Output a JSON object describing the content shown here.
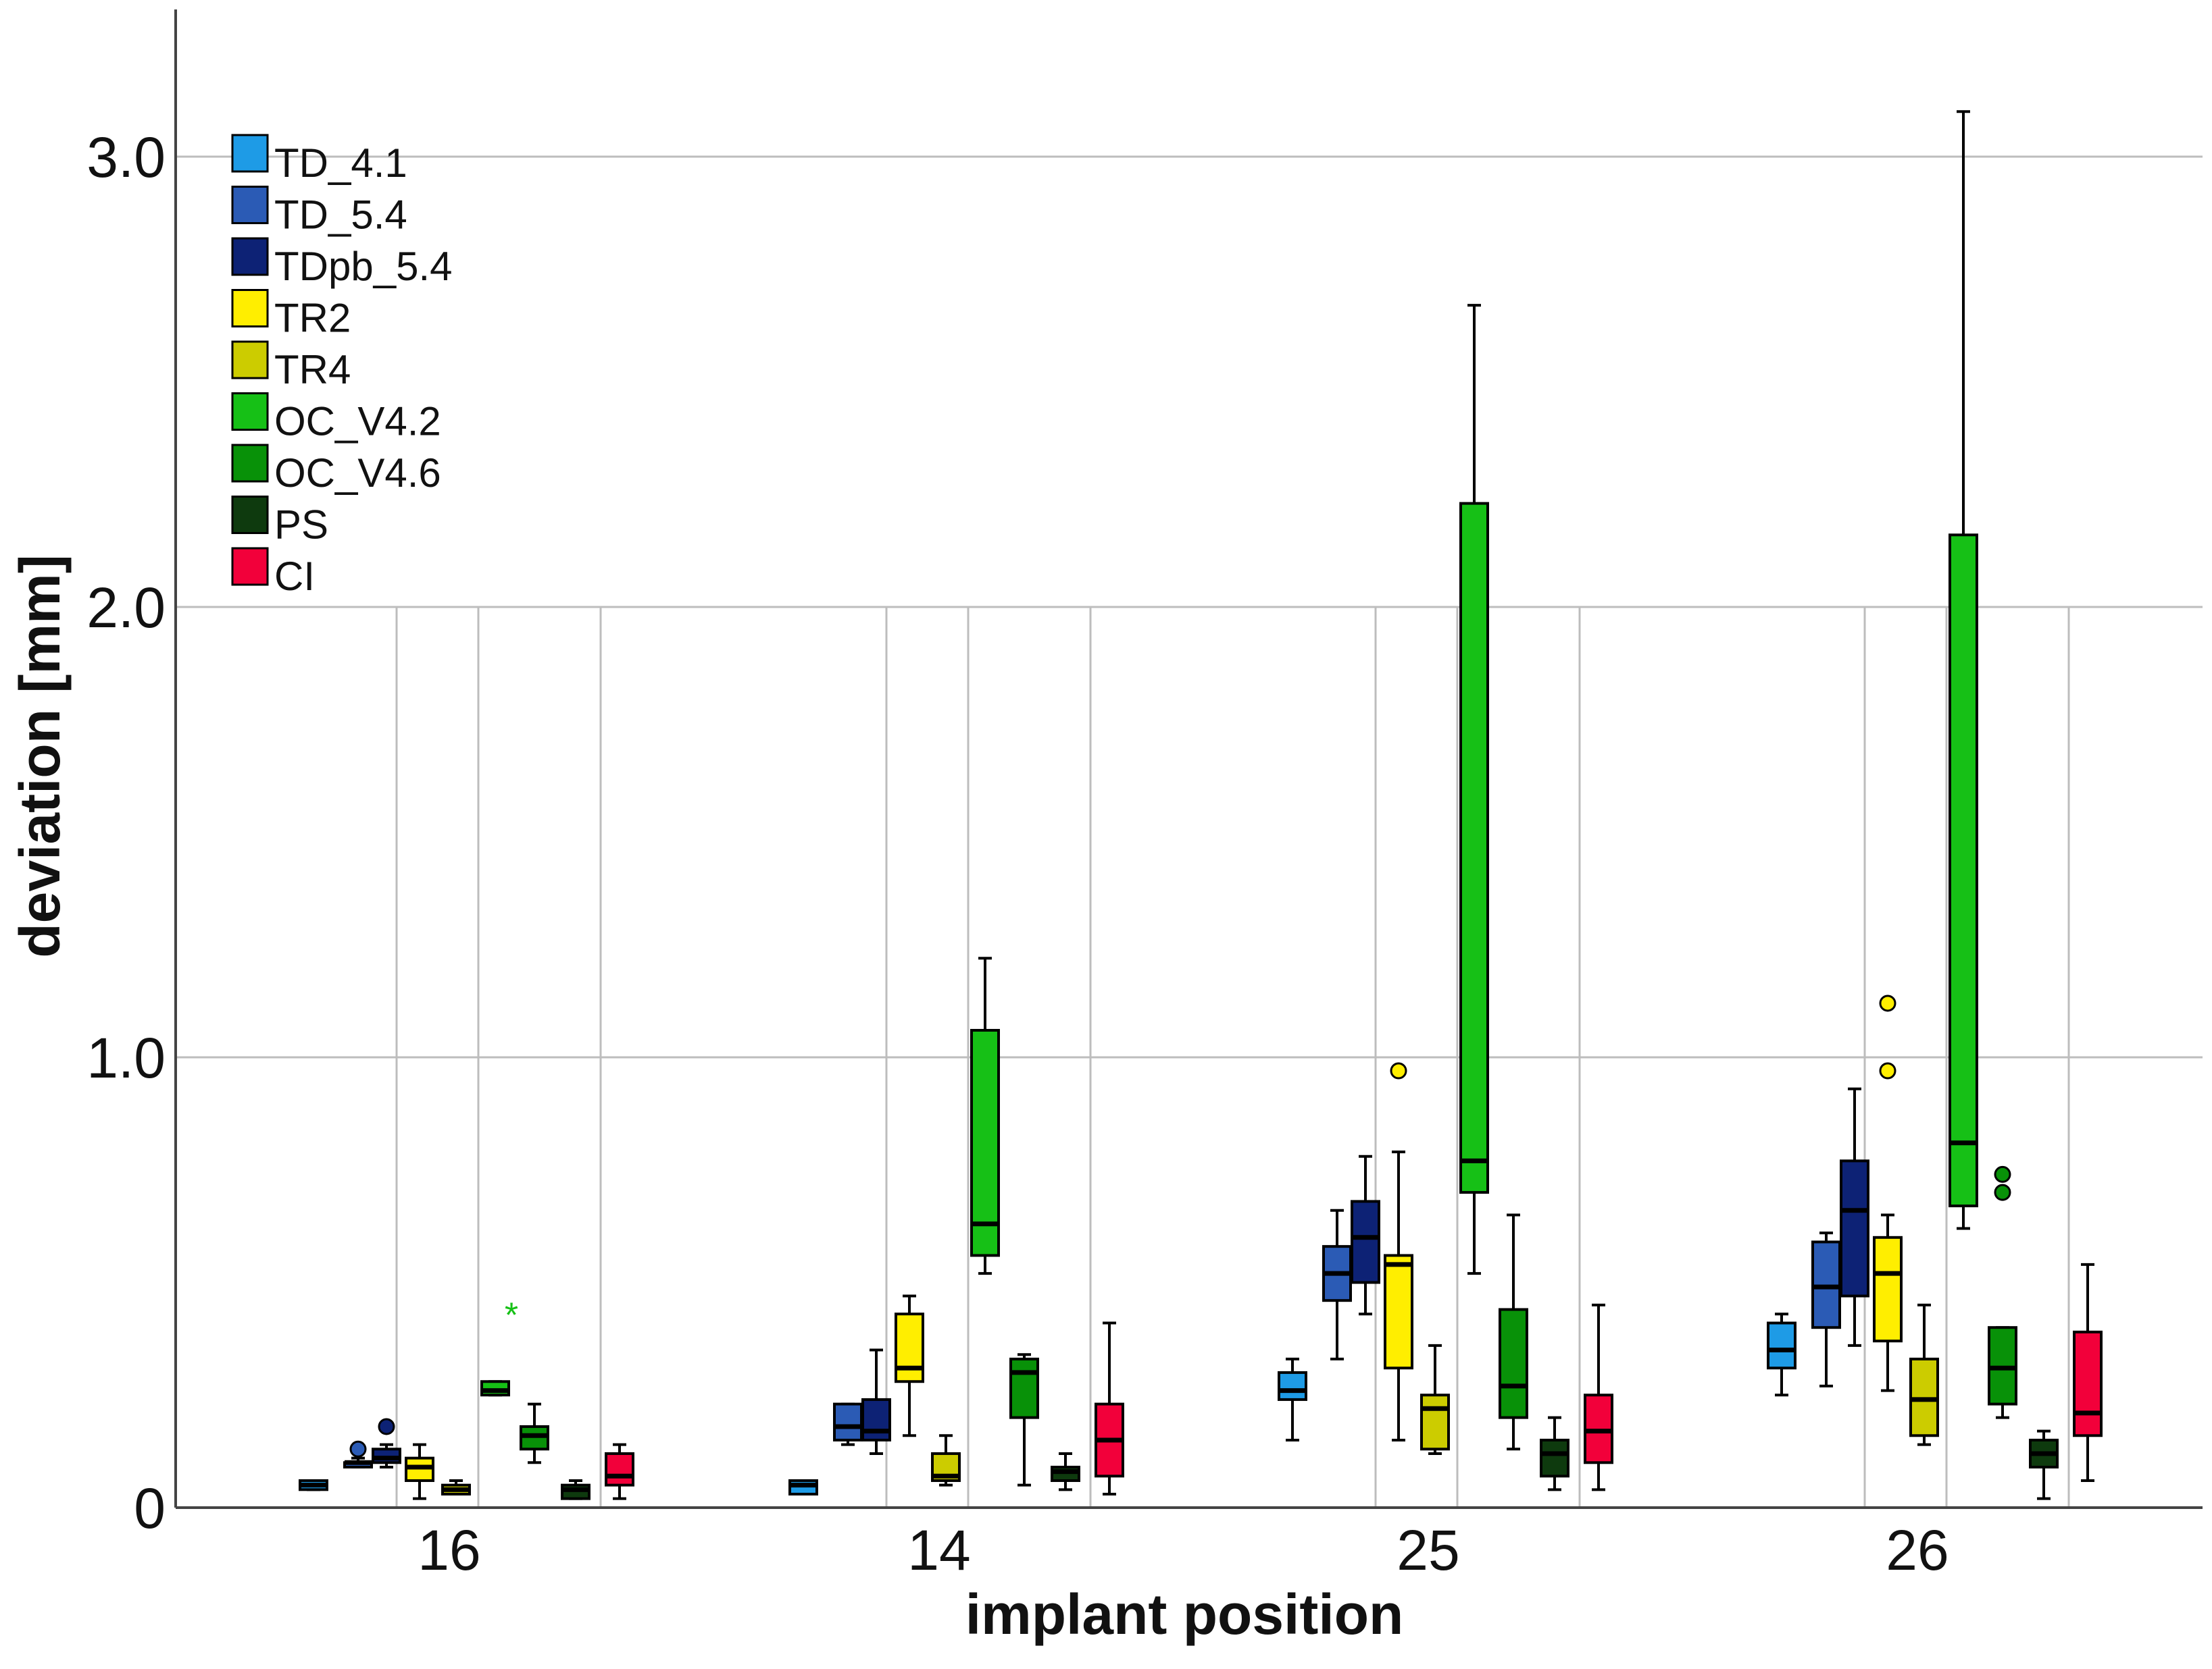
{
  "chart_data": {
    "type": "boxplot",
    "title": "",
    "xlabel": "implant position",
    "ylabel": "deviation [mm]",
    "ylim": [
      0,
      3.3
    ],
    "yticks": [
      {
        "value": 0,
        "label": "0"
      },
      {
        "value": 1,
        "label": "1.0"
      },
      {
        "value": 2,
        "label": "2.0"
      },
      {
        "value": 3,
        "label": "3.0"
      }
    ],
    "categories": [
      "16",
      "14",
      "25",
      "26"
    ],
    "legend_position": "top-left",
    "series": [
      {
        "name": "TD_4.1",
        "color": "#1e9be6",
        "boxes": [
          {
            "min": 0.04,
            "q1": 0.04,
            "median": 0.05,
            "q3": 0.06,
            "max": 0.06
          },
          {
            "min": 0.03,
            "q1": 0.03,
            "median": 0.05,
            "q3": 0.06,
            "max": 0.06
          },
          {
            "min": 0.15,
            "q1": 0.24,
            "median": 0.26,
            "q3": 0.3,
            "max": 0.33
          },
          {
            "min": 0.25,
            "q1": 0.31,
            "median": 0.35,
            "q3": 0.41,
            "max": 0.43
          }
        ]
      },
      {
        "name": "TD_5.4",
        "color": "#2b5bb5",
        "boxes": [
          {
            "min": 0.09,
            "q1": 0.09,
            "median": 0.1,
            "q3": 0.1,
            "max": 0.11,
            "outliers": [
              0.13
            ]
          },
          {
            "min": 0.14,
            "q1": 0.15,
            "median": 0.18,
            "q3": 0.23,
            "max": 0.23
          },
          {
            "min": 0.33,
            "q1": 0.46,
            "median": 0.52,
            "q3": 0.58,
            "max": 0.66
          },
          {
            "min": 0.27,
            "q1": 0.4,
            "median": 0.49,
            "q3": 0.59,
            "max": 0.61
          }
        ]
      },
      {
        "name": "TDpb_5.4",
        "color": "#0d2275",
        "boxes": [
          {
            "min": 0.09,
            "q1": 0.1,
            "median": 0.11,
            "q3": 0.13,
            "max": 0.14,
            "outliers": [
              0.18
            ]
          },
          {
            "min": 0.12,
            "q1": 0.15,
            "median": 0.17,
            "q3": 0.24,
            "max": 0.35
          },
          {
            "min": 0.43,
            "q1": 0.5,
            "median": 0.6,
            "q3": 0.68,
            "max": 0.78
          },
          {
            "min": 0.36,
            "q1": 0.47,
            "median": 0.66,
            "q3": 0.77,
            "max": 0.93
          }
        ]
      },
      {
        "name": "TR2",
        "color": "#ffee00",
        "boxes": [
          {
            "min": 0.02,
            "q1": 0.06,
            "median": 0.09,
            "q3": 0.11,
            "max": 0.14
          },
          {
            "min": 0.16,
            "q1": 0.28,
            "median": 0.31,
            "q3": 0.43,
            "max": 0.47
          },
          {
            "min": 0.15,
            "q1": 0.31,
            "median": 0.54,
            "q3": 0.56,
            "max": 0.79,
            "outliers": [
              0.97
            ]
          },
          {
            "min": 0.26,
            "q1": 0.37,
            "median": 0.52,
            "q3": 0.6,
            "max": 0.65,
            "outliers": [
              0.97,
              1.12
            ]
          }
        ]
      },
      {
        "name": "TR4",
        "color": "#cccc00",
        "boxes": [
          {
            "min": 0.03,
            "q1": 0.03,
            "median": 0.04,
            "q3": 0.05,
            "max": 0.06
          },
          {
            "min": 0.05,
            "q1": 0.06,
            "median": 0.07,
            "q3": 0.12,
            "max": 0.16
          },
          {
            "min": 0.12,
            "q1": 0.13,
            "median": 0.22,
            "q3": 0.25,
            "max": 0.36
          },
          {
            "min": 0.14,
            "q1": 0.16,
            "median": 0.24,
            "q3": 0.33,
            "max": 0.45
          }
        ]
      },
      {
        "name": "OC_V4.2",
        "color": "#16c016",
        "boxes": [
          {
            "min": 0.25,
            "q1": 0.25,
            "median": 0.26,
            "q3": 0.28,
            "max": 0.28,
            "extremes": [
              0.44
            ]
          },
          {
            "min": 0.52,
            "q1": 0.56,
            "median": 0.63,
            "q3": 1.06,
            "max": 1.22
          },
          {
            "min": 0.52,
            "q1": 0.7,
            "median": 0.77,
            "q3": 2.23,
            "max": 2.67
          },
          {
            "min": 0.62,
            "q1": 0.67,
            "median": 0.81,
            "q3": 2.16,
            "max": 3.1
          }
        ]
      },
      {
        "name": "OC_V4.6",
        "color": "#089108",
        "boxes": [
          {
            "min": 0.1,
            "q1": 0.13,
            "median": 0.16,
            "q3": 0.18,
            "max": 0.23
          },
          {
            "min": 0.05,
            "q1": 0.2,
            "median": 0.3,
            "q3": 0.33,
            "max": 0.34
          },
          {
            "min": 0.13,
            "q1": 0.2,
            "median": 0.27,
            "q3": 0.44,
            "max": 0.65
          },
          {
            "min": 0.2,
            "q1": 0.23,
            "median": 0.31,
            "q3": 0.4,
            "max": 0.4,
            "outliers": [
              0.7,
              0.74
            ]
          }
        ]
      },
      {
        "name": "PS",
        "color": "#0e3a0e",
        "boxes": [
          {
            "min": 0.02,
            "q1": 0.02,
            "median": 0.04,
            "q3": 0.05,
            "max": 0.06
          },
          {
            "min": 0.04,
            "q1": 0.06,
            "median": 0.08,
            "q3": 0.09,
            "max": 0.12
          },
          {
            "min": 0.04,
            "q1": 0.07,
            "median": 0.12,
            "q3": 0.15,
            "max": 0.2
          },
          {
            "min": 0.02,
            "q1": 0.09,
            "median": 0.12,
            "q3": 0.15,
            "max": 0.17
          }
        ]
      },
      {
        "name": "CI",
        "color": "#f2003a",
        "boxes": [
          {
            "min": 0.02,
            "q1": 0.05,
            "median": 0.07,
            "q3": 0.12,
            "max": 0.14
          },
          {
            "min": 0.03,
            "q1": 0.07,
            "median": 0.15,
            "q3": 0.23,
            "max": 0.41
          },
          {
            "min": 0.04,
            "q1": 0.1,
            "median": 0.17,
            "q3": 0.25,
            "max": 0.45
          },
          {
            "min": 0.06,
            "q1": 0.16,
            "median": 0.21,
            "q3": 0.39,
            "max": 0.54
          }
        ]
      }
    ]
  }
}
